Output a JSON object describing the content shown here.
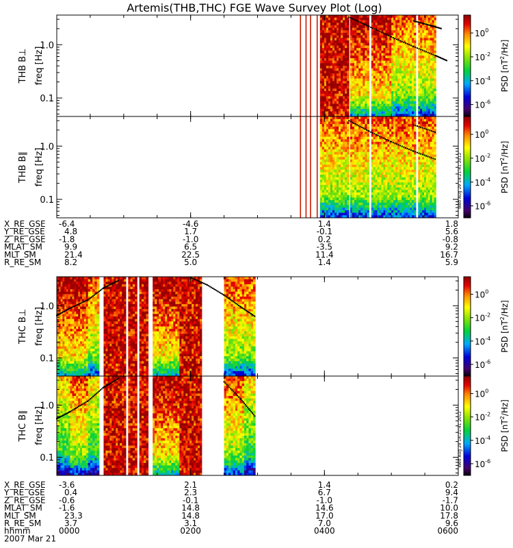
{
  "chart_data": {
    "type": "heatmap",
    "title": "Artemis(THB,THC) FGE Wave Survey Plot (Log)",
    "colorbar": {
      "label": "PSD [nT²/Hz]",
      "label_base": "PSD [nT",
      "label_exp": "2",
      "label_tail": "/Hz]",
      "range_exp": [
        -7,
        1.5
      ],
      "ticks": [
        {
          "exp": 0,
          "label": "10",
          "sup": "0"
        },
        {
          "exp": -2,
          "label": "10",
          "sup": "-2"
        },
        {
          "exp": -4,
          "label": "10",
          "sup": "-4"
        },
        {
          "exp": -6,
          "label": "10",
          "sup": "-6"
        }
      ]
    },
    "freq_axis": {
      "label": "freq [Hz]",
      "log": true,
      "range": [
        0.045,
        3.6
      ],
      "ticks": [
        {
          "value": 1.0,
          "label": "1.0"
        },
        {
          "value": 0.1,
          "label": "0.1"
        }
      ]
    },
    "x_axis": {
      "label": "hhmm",
      "range_min": [
        0,
        360
      ],
      "ticks": [
        {
          "min": 0,
          "label": "0000"
        },
        {
          "min": 120,
          "label": "0200"
        },
        {
          "min": 240,
          "label": "0400"
        },
        {
          "min": 360,
          "label": "0600"
        }
      ],
      "date": "2007 Mar 21"
    },
    "stamp": "Wed Aug 29 14:21:41 2012",
    "panels": [
      {
        "id": "thb-bperp",
        "ylabel_probe": "THB",
        "ylabel_comp": "B⊥",
        "ylabel_units": "freq [Hz]",
        "strips_min": [
          [
            218,
            219
          ],
          [
            223,
            224
          ],
          [
            227,
            228
          ],
          [
            233,
            234
          ]
        ],
        "blocks_min": [
          [
            236,
            262,
            3
          ],
          [
            263,
            280,
            2
          ],
          [
            282,
            300,
            2
          ],
          [
            300,
            322,
            1
          ],
          [
            324,
            340,
            1
          ]
        ],
        "gyro": [
          [
            262,
            3.3
          ],
          [
            280,
            2.2
          ],
          [
            300,
            1.4
          ],
          [
            320,
            0.92
          ],
          [
            340,
            0.62
          ],
          [
            350,
            0.5
          ]
        ],
        "gyro2": [
          [
            320,
            2.8
          ],
          [
            335,
            2.3
          ],
          [
            345,
            2.0
          ]
        ]
      },
      {
        "id": "thb-bpar",
        "ylabel_probe": "THB",
        "ylabel_comp": "B∥",
        "ylabel_units": "freq [Hz]",
        "strips_min": [
          [
            218,
            219
          ],
          [
            223,
            224
          ],
          [
            227,
            228
          ],
          [
            233,
            234
          ]
        ],
        "blocks_min": [
          [
            236,
            262,
            1
          ],
          [
            263,
            280,
            1
          ],
          [
            282,
            300,
            1
          ],
          [
            300,
            322,
            1
          ],
          [
            324,
            340,
            1
          ]
        ],
        "gyro": [
          [
            262,
            3.0
          ],
          [
            280,
            1.9
          ],
          [
            300,
            1.2
          ],
          [
            320,
            0.8
          ],
          [
            340,
            0.56
          ]
        ],
        "gyro2": [
          [
            320,
            2.5
          ],
          [
            340,
            1.8
          ]
        ]
      },
      {
        "id": "thc-bperp",
        "ylabel_probe": "THC",
        "ylabel_comp": "B⊥",
        "ylabel_units": "freq [Hz]",
        "strips_min": [],
        "blocks_min": [
          [
            0,
            12,
            2
          ],
          [
            12,
            28,
            2
          ],
          [
            28,
            38,
            1
          ],
          [
            42,
            62,
            3
          ],
          [
            64,
            72,
            3
          ],
          [
            74,
            82,
            3
          ],
          [
            86,
            110,
            2
          ],
          [
            110,
            130,
            3
          ],
          [
            150,
            160,
            1
          ],
          [
            160,
            168,
            1
          ],
          [
            168,
            178,
            1
          ]
        ],
        "gyro": [
          [
            0,
            0.65
          ],
          [
            12,
            0.9
          ],
          [
            28,
            1.3
          ],
          [
            42,
            2.2
          ],
          [
            56,
            3.1
          ]
        ],
        "gyro2": [
          [
            120,
            3.5
          ],
          [
            135,
            2.5
          ],
          [
            150,
            1.6
          ],
          [
            165,
            0.95
          ],
          [
            178,
            0.62
          ]
        ]
      },
      {
        "id": "thc-bpar",
        "ylabel_probe": "THC",
        "ylabel_comp": "B∥",
        "ylabel_units": "freq [Hz]",
        "strips_min": [],
        "blocks_min": [
          [
            0,
            12,
            0
          ],
          [
            12,
            28,
            1
          ],
          [
            28,
            38,
            0
          ],
          [
            42,
            62,
            3
          ],
          [
            64,
            72,
            3
          ],
          [
            74,
            82,
            3
          ],
          [
            86,
            110,
            2
          ],
          [
            110,
            130,
            3
          ],
          [
            150,
            160,
            1
          ],
          [
            160,
            168,
            1
          ],
          [
            168,
            178,
            0
          ]
        ],
        "gyro": [
          [
            0,
            0.55
          ],
          [
            12,
            0.75
          ],
          [
            28,
            1.2
          ],
          [
            42,
            2.2
          ],
          [
            56,
            3.3
          ]
        ],
        "gyro2": [
          [
            150,
            2.8
          ],
          [
            165,
            1.3
          ],
          [
            178,
            0.6
          ]
        ]
      }
    ],
    "ephemeris": [
      {
        "id": "thb",
        "rows": [
          {
            "label": "X_RE_GSE",
            "values": [
              "-6.4",
              "-4.6",
              "1.4",
              "1.8"
            ]
          },
          {
            "label": "Y_RE_GSE",
            "values": [
              "4.8",
              "1.7",
              "-0.1",
              "5.6"
            ]
          },
          {
            "label": "Z_RE_GSE",
            "values": [
              "-1.8",
              "-1.0",
              "0.2",
              "-0.8"
            ]
          },
          {
            "label": "MLAT_SM",
            "values": [
              "9.9",
              "6.5",
              "-3.5",
              "9.2"
            ]
          },
          {
            "label": "MLT_SM",
            "values": [
              "21.4",
              "22.5",
              "11.4",
              "16.7"
            ]
          },
          {
            "label": "R_RE_SM",
            "values": [
              "8.2",
              "5.0",
              "1.4",
              "5.9"
            ]
          }
        ]
      },
      {
        "id": "thc",
        "rows": [
          {
            "label": "X_RE_GSE",
            "values": [
              "-3.6",
              "2.1",
              "1.4",
              "0.2"
            ]
          },
          {
            "label": "Y_RE_GSE",
            "values": [
              "0.4",
              "2.3",
              "6.7",
              "9.4"
            ]
          },
          {
            "label": "Z_RE_GSE",
            "values": [
              "-0.6",
              "-0.1",
              "-1.0",
              "-1.7"
            ]
          },
          {
            "label": "MLAT_SM",
            "values": [
              "-1.6",
              "14.8",
              "14.6",
              "10.0"
            ]
          },
          {
            "label": "MLT_SM",
            "values": [
              "23.3",
              "14.8",
              "17.0",
              "17.8"
            ]
          },
          {
            "label": "R_RE_SM",
            "values": [
              "3.7",
              "3.1",
              "7.0",
              "9.6"
            ]
          }
        ]
      }
    ]
  }
}
